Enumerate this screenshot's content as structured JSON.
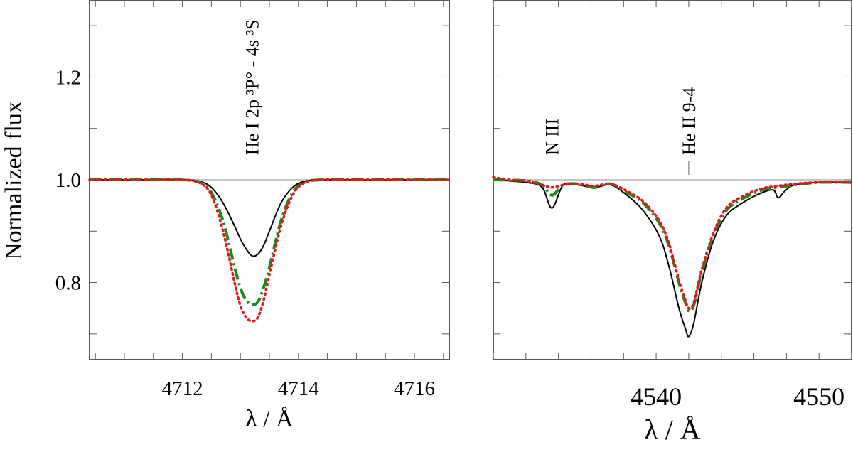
{
  "chart_data": {
    "type": "line",
    "ylabel": "Normalized flux",
    "ylim": [
      0.65,
      1.35
    ],
    "yticks": [
      0.8,
      1.0,
      1.2
    ],
    "ytick_labels": [
      "0.8",
      "1.0",
      "1.2"
    ],
    "colors": {
      "solid": "#000000",
      "dashdot": "#1a8a1a",
      "dotted": "#e8141a"
    },
    "panels": [
      {
        "xlabel": "λ / Å",
        "xlim": [
          4710.4,
          4716.6
        ],
        "xticks": [
          4712,
          4714,
          4716
        ],
        "xtick_labels": [
          "4712",
          "4714",
          "4716"
        ],
        "annotations": [
          {
            "text": "He I 2p ³P° - 4s ³S",
            "x": 4713.2
          }
        ],
        "series": [
          {
            "style": "solid",
            "color": "#000000",
            "x": [
              4710.4,
              4711.5,
              4712.0,
              4712.3,
              4712.5,
              4712.7,
              4712.9,
              4713.0,
              4713.1,
              4713.2,
              4713.3,
              4713.4,
              4713.5,
              4713.7,
              4713.9,
              4714.1,
              4714.4,
              4715.0,
              4716.6
            ],
            "y": [
              1.0,
              1.0,
              1.0,
              0.997,
              0.985,
              0.955,
              0.91,
              0.885,
              0.865,
              0.852,
              0.855,
              0.872,
              0.9,
              0.955,
              0.985,
              0.997,
              1.0,
              1.0,
              1.0
            ]
          },
          {
            "style": "dashdot",
            "color": "#1a8a1a",
            "x": [
              4710.4,
              4711.5,
              4712.0,
              4712.3,
              4712.5,
              4712.7,
              4712.9,
              4713.0,
              4713.1,
              4713.2,
              4713.3,
              4713.4,
              4713.5,
              4713.7,
              4713.9,
              4714.1,
              4714.4,
              4715.0,
              4716.6
            ],
            "y": [
              1.0,
              1.0,
              1.0,
              0.995,
              0.975,
              0.92,
              0.83,
              0.79,
              0.765,
              0.758,
              0.762,
              0.79,
              0.83,
              0.92,
              0.975,
              0.995,
              1.0,
              1.0,
              1.0
            ]
          },
          {
            "style": "dotted",
            "color": "#e8141a",
            "x": [
              4710.4,
              4711.5,
              4712.0,
              4712.3,
              4712.5,
              4712.7,
              4712.9,
              4713.0,
              4713.1,
              4713.2,
              4713.3,
              4713.4,
              4713.5,
              4713.7,
              4713.9,
              4714.1,
              4714.4,
              4715.0,
              4716.6
            ],
            "y": [
              1.0,
              1.0,
              1.0,
              0.994,
              0.97,
              0.9,
              0.8,
              0.755,
              0.732,
              0.725,
              0.732,
              0.765,
              0.815,
              0.91,
              0.97,
              0.994,
              1.0,
              1.0,
              1.0
            ]
          }
        ]
      },
      {
        "xlabel": "λ / Å",
        "xlim": [
          4530.0,
          4552.0
        ],
        "xticks": [
          4540,
          4550
        ],
        "xtick_labels": [
          "4540",
          "4550"
        ],
        "annotations": [
          {
            "text": "N III",
            "x": 4533.6
          },
          {
            "text": "He II 9-4",
            "x": 4542.0
          }
        ],
        "series": [
          {
            "style": "solid",
            "color": "#000000",
            "x": [
              4530.0,
              4532.0,
              4533.0,
              4533.6,
              4534.3,
              4535.2,
              4536.2,
              4537.2,
              4538.2,
              4539.2,
              4540.2,
              4540.8,
              4541.4,
              4541.8,
              4542.0,
              4542.3,
              4542.8,
              4543.5,
              4544.3,
              4545.3,
              4546.5,
              4547.2,
              4547.5,
              4547.9,
              4548.5,
              4550.0,
              4552.0
            ],
            "y": [
              1.0,
              0.995,
              0.985,
              0.945,
              0.99,
              0.99,
              0.985,
              0.99,
              0.97,
              0.94,
              0.89,
              0.83,
              0.75,
              0.71,
              0.695,
              0.72,
              0.8,
              0.88,
              0.93,
              0.955,
              0.975,
              0.98,
              0.965,
              0.978,
              0.99,
              0.995,
              0.995
            ]
          },
          {
            "style": "dashdot",
            "color": "#1a8a1a",
            "x": [
              4530.0,
              4532.0,
              4533.0,
              4533.6,
              4534.3,
              4535.2,
              4536.2,
              4537.2,
              4538.2,
              4539.2,
              4540.2,
              4540.8,
              4541.4,
              4541.8,
              4542.0,
              4542.3,
              4542.8,
              4543.5,
              4544.3,
              4545.3,
              4546.5,
              4547.5,
              4548.5,
              4550.0,
              4552.0
            ],
            "y": [
              1.0,
              0.998,
              0.99,
              0.97,
              0.99,
              0.992,
              0.985,
              0.992,
              0.975,
              0.955,
              0.915,
              0.87,
              0.8,
              0.76,
              0.745,
              0.755,
              0.82,
              0.89,
              0.94,
              0.963,
              0.98,
              0.985,
              0.99,
              0.995,
              0.995
            ]
          },
          {
            "style": "dotted",
            "color": "#e8141a",
            "x": [
              4530.0,
              4531.0,
              4532.0,
              4533.0,
              4533.6,
              4534.3,
              4535.2,
              4536.2,
              4537.2,
              4538.2,
              4539.2,
              4540.2,
              4540.8,
              4541.4,
              4541.8,
              4542.0,
              4542.3,
              4542.8,
              4543.5,
              4544.3,
              4545.3,
              4546.5,
              4547.5,
              4548.5,
              4550.0,
              4552.0
            ],
            "y": [
              1.005,
              1.0,
              0.998,
              0.99,
              0.985,
              0.99,
              0.992,
              0.988,
              0.992,
              0.978,
              0.958,
              0.92,
              0.875,
              0.805,
              0.765,
              0.75,
              0.76,
              0.825,
              0.895,
              0.945,
              0.968,
              0.983,
              0.988,
              0.992,
              0.995,
              0.995
            ]
          }
        ]
      }
    ]
  }
}
